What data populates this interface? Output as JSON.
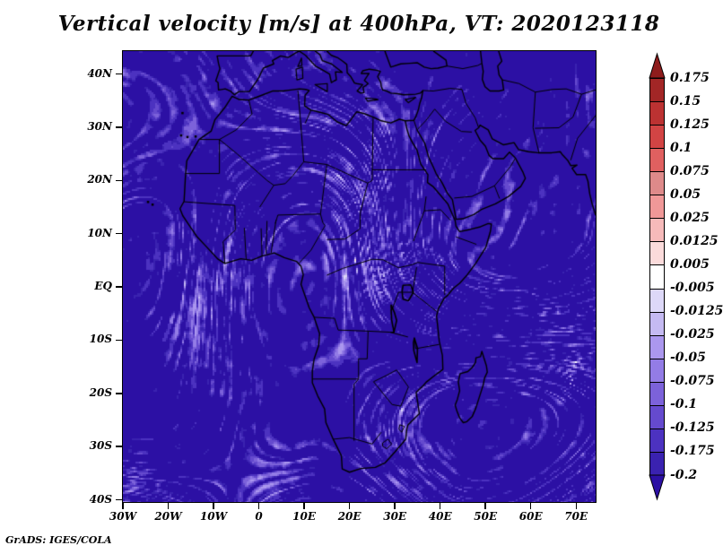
{
  "chart_data": {
    "type": "heatmap",
    "title": "Vertical velocity [m/s] at 400hPa, VT: 2020123118",
    "variable": "Vertical velocity",
    "units": "m/s",
    "pressure_level": "400hPa",
    "valid_time": "2020123118",
    "region": {
      "lon_min": -30,
      "lon_max": 74,
      "lat_min": -40,
      "lat_max": 44
    },
    "x_tick_labels": [
      "30W",
      "20W",
      "10W",
      "0",
      "10E",
      "20E",
      "30E",
      "40E",
      "50E",
      "60E",
      "70E"
    ],
    "y_tick_labels": [
      "40N",
      "30N",
      "20N",
      "10N",
      "EQ",
      "10S",
      "20S",
      "30S",
      "40S"
    ],
    "grid": false,
    "colorbar": {
      "position": "right",
      "tick_labels": [
        "0.175",
        "0.15",
        "0.125",
        "0.1",
        "0.075",
        "0.05",
        "0.025",
        "0.0125",
        "0.005",
        "-0.005",
        "-0.0125",
        "-0.025",
        "-0.05",
        "-0.075",
        "-0.1",
        "-0.125",
        "-0.175",
        "-0.2"
      ],
      "levels": [
        0.175,
        0.15,
        0.125,
        0.1,
        0.075,
        0.05,
        0.025,
        0.0125,
        0.005,
        -0.005,
        -0.0125,
        -0.025,
        -0.05,
        -0.075,
        -0.1,
        -0.125,
        -0.175,
        -0.2
      ],
      "segment_colors_top_to_bottom": [
        "#a22626",
        "#bc3232",
        "#d24444",
        "#e06060",
        "#de8a8a",
        "#f09898",
        "#f6baba",
        "#fbdbdb",
        "#ffffff",
        "#ddd8f8",
        "#c5baf2",
        "#ab97ee",
        "#937ce6",
        "#7c62da",
        "#654ace",
        "#4c32c0",
        "#3a22b0"
      ],
      "arrow_top_color": "#8e1c1c",
      "arrow_bottom_color": "#2c10a4"
    },
    "credit": "GrADS: IGES/COLA"
  }
}
